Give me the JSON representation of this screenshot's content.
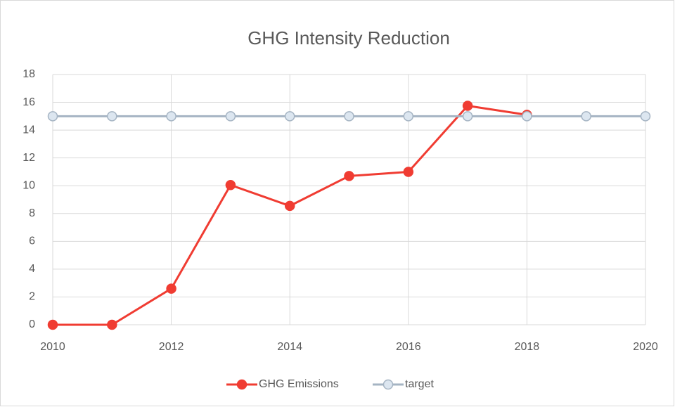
{
  "chart_data": {
    "type": "line",
    "title": "GHG Intensity Reduction",
    "x": [
      2010,
      2011,
      2012,
      2013,
      2014,
      2015,
      2016,
      2017,
      2018,
      2019,
      2020
    ],
    "series": [
      {
        "name": "GHG Emissions",
        "color": "#f03c32",
        "values": [
          0,
          0,
          2.6,
          10.05,
          8.55,
          10.7,
          11.0,
          15.75,
          15.1,
          null,
          null
        ]
      },
      {
        "name": "target",
        "color": "#a5b4c3",
        "values": [
          15,
          15,
          15,
          15,
          15,
          15,
          15,
          15,
          15,
          15,
          15
        ]
      }
    ],
    "xlim": [
      2010,
      2020
    ],
    "xticks": [
      2010,
      2012,
      2014,
      2016,
      2018,
      2020
    ],
    "ylim": [
      0,
      18
    ],
    "yticks": [
      0,
      2,
      4,
      6,
      8,
      10,
      12,
      14,
      16,
      18
    ],
    "grid": true,
    "legend": "bottom"
  }
}
